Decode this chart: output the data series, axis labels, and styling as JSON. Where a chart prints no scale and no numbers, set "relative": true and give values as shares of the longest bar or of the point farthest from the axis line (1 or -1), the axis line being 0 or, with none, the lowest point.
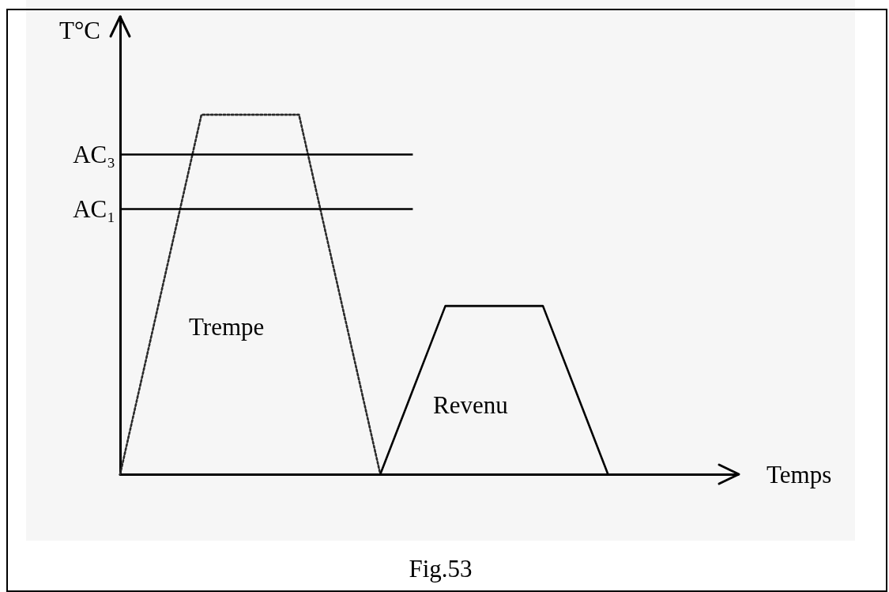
{
  "chart_data": {
    "type": "line",
    "relative": true,
    "xlabel": "Temps",
    "ylabel": "T°C",
    "annotations": [
      "Fig.53"
    ],
    "marker": "none",
    "legend": false,
    "categories": [
      null,
      null,
      null,
      null,
      null,
      null,
      null,
      null,
      null,
      null,
      null,
      null,
      null,
      null,
      null,
      null,
      null,
      null,
      null,
      null,
      null,
      null,
      null,
      null,
      null,
      null,
      null,
      null,
      null,
      null,
      null,
      null,
      null,
      null,
      null,
      null,
      null,
      null,
      null
    ],
    "series": [
      {
        "name": "Trempe",
        "color": "#2a2a2a",
        "line_style": "dotted",
        "values": [
          0,
          0.2,
          0.4,
          0.6,
          0.8,
          1,
          1,
          1,
          1,
          1,
          1,
          1,
          0.8,
          0.6,
          0.4,
          0.2,
          0,
          null,
          null,
          null,
          null,
          null,
          null,
          null,
          null,
          null,
          null,
          null,
          null,
          null,
          null,
          null,
          null,
          null,
          null,
          null,
          null,
          null,
          null
        ]
      },
      {
        "name": "Revenu",
        "color": "#000000",
        "line_style": "solid",
        "values": [
          null,
          null,
          null,
          null,
          null,
          null,
          null,
          null,
          null,
          null,
          null,
          null,
          null,
          null,
          null,
          null,
          0,
          0.117,
          0.234,
          0.351,
          0.468,
          0.468,
          0.468,
          0.468,
          0.468,
          0.468,
          0.468,
          0.351,
          0.234,
          0.117,
          0,
          null,
          null,
          null,
          null,
          null,
          null,
          null,
          null
        ]
      }
    ],
    "ref_lines": [
      {
        "axis": "y",
        "value": 0.89,
        "label": "AC₃",
        "color": "#000000",
        "line_style": "solid"
      },
      {
        "axis": "y",
        "value": 0.738,
        "label": "AC₁",
        "color": "#000000",
        "line_style": "solid"
      }
    ]
  }
}
